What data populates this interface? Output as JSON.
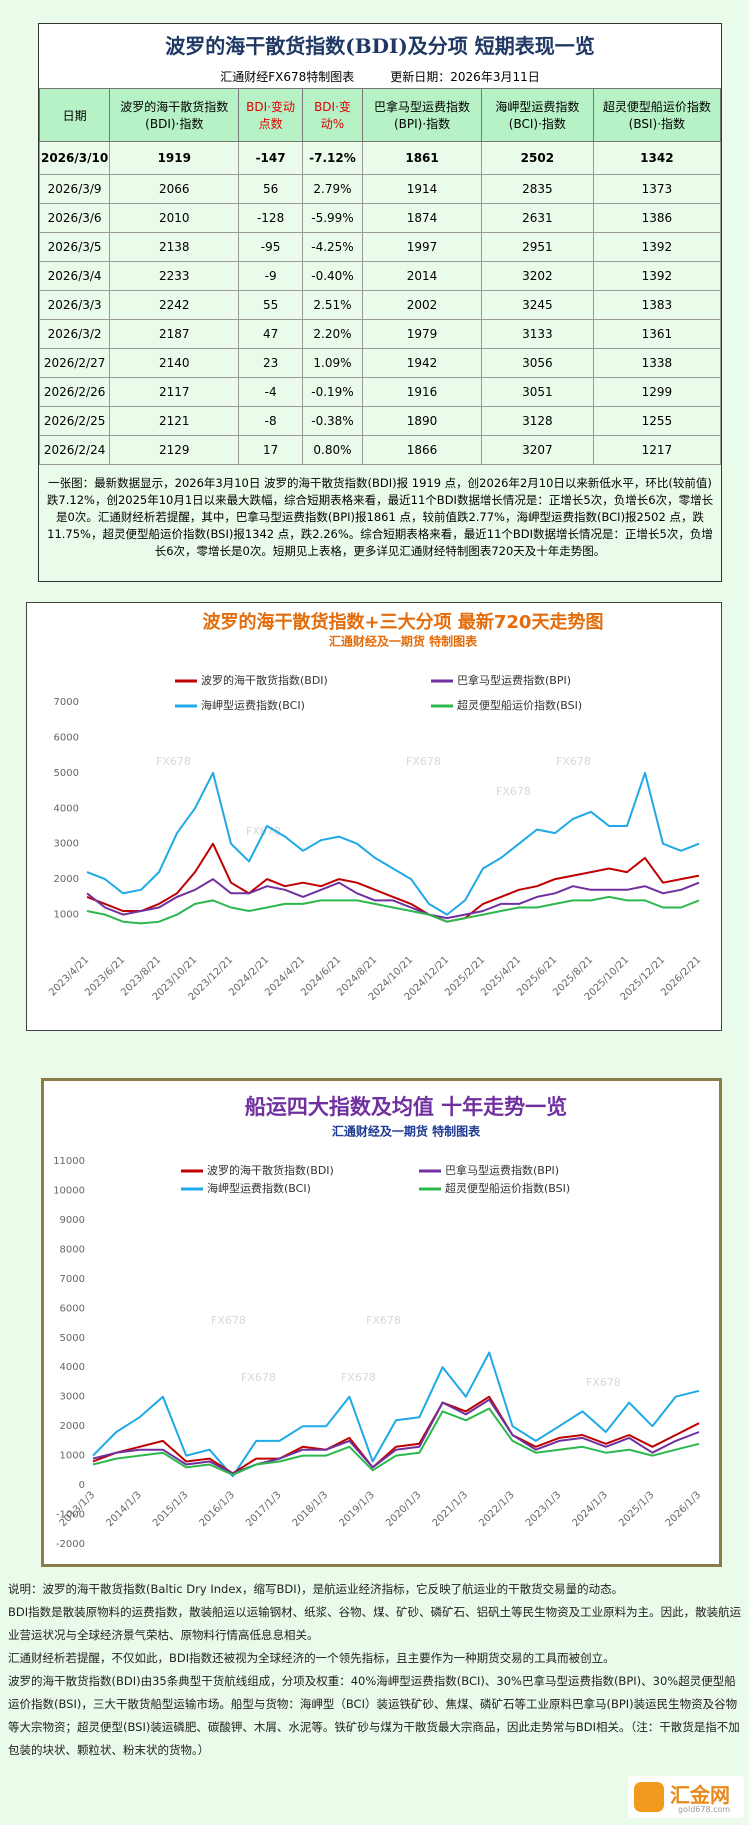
{
  "header": {
    "title": "波罗的海干散货指数(BDI)及分项  短期表现一览",
    "maker": "汇通财经FX678特制图表",
    "updated": "更新日期：2026年3月11日"
  },
  "table": {
    "columns": [
      "日期",
      "波罗的海干散货指数(BDI)·指数",
      "BDI·变动点数",
      "BDI·变动%",
      "巴拿马型运费指数(BPI)·指数",
      "海岬型运费指数(BCI)·指数",
      "超灵便型船运价指数(BSI)·指数"
    ],
    "rows": [
      [
        "2026/3/10",
        "1919",
        "-147",
        "-7.12%",
        "1861",
        "2502",
        "1342"
      ],
      [
        "2026/3/9",
        "2066",
        "56",
        "2.79%",
        "1914",
        "2835",
        "1373"
      ],
      [
        "2026/3/6",
        "2010",
        "-128",
        "-5.99%",
        "1874",
        "2631",
        "1386"
      ],
      [
        "2026/3/5",
        "2138",
        "-95",
        "-4.25%",
        "1997",
        "2951",
        "1392"
      ],
      [
        "2026/3/4",
        "2233",
        "-9",
        "-0.40%",
        "2014",
        "3202",
        "1392"
      ],
      [
        "2026/3/3",
        "2242",
        "55",
        "2.51%",
        "2002",
        "3245",
        "1383"
      ],
      [
        "2026/3/2",
        "2187",
        "47",
        "2.20%",
        "1979",
        "3133",
        "1361"
      ],
      [
        "2026/2/27",
        "2140",
        "23",
        "1.09%",
        "1942",
        "3056",
        "1338"
      ],
      [
        "2026/2/26",
        "2117",
        "-4",
        "-0.19%",
        "1916",
        "3051",
        "1299"
      ],
      [
        "2026/2/25",
        "2121",
        "-8",
        "-0.38%",
        "1890",
        "3128",
        "1255"
      ],
      [
        "2026/2/24",
        "2129",
        "17",
        "0.80%",
        "1866",
        "3207",
        "1217"
      ]
    ]
  },
  "summary": "一张图：最新数据显示，2026年3月10日 波罗的海干散货指数(BDI)报 1919 点，创2026年2月10日以来新低水平，环比(较前值)跌7.12%，创2025年10月1日以来最大跌幅，综合短期表格来看，最近11个BDI数据增长情况是：正增长5次，负增长6次，零增长是0次。汇通财经析若提醒，其中，巴拿马型运费指数(BPI)报1861 点，较前值跌2.77%，海岬型运费指数(BCI)报2502 点，跌11.75%，超灵便型船运价指数(BSI)报1342 点，跌2.26%。综合短期表格来看，最近11个BDI数据增长情况是：正增长5次，负增长6次，零增长是0次。短期见上表格，更多详见汇通财经特制图表720天及十年走势图。",
  "chart_data": [
    {
      "type": "line",
      "title": "波罗的海干散货指数+三大分项  最新720天走势图",
      "subtitle": "汇通财经及一期货 特制图表",
      "watermark": "FX678",
      "categories": [
        "2023/4/21",
        null,
        "2023/6/21",
        null,
        "2023/8/21",
        null,
        "2023/10/21",
        null,
        "2023/12/21",
        null,
        "2024/2/21",
        null,
        "2024/4/21",
        null,
        "2024/6/21",
        null,
        "2024/8/21",
        null,
        "2024/10/21",
        null,
        "2024/12/21",
        null,
        "2025/2/21",
        null,
        "2025/4/21",
        null,
        "2025/6/21",
        null,
        "2025/8/21",
        null,
        "2025/10/21",
        null,
        "2025/12/21",
        null,
        "2026/2/21"
      ],
      "ylim": [
        0,
        7000
      ],
      "yticks": [
        1000,
        2000,
        3000,
        4000,
        5000,
        6000,
        7000
      ],
      "grid": false,
      "series": [
        {
          "name": "波罗的海干散货指数(BDI)",
          "color": "#c00000",
          "values": [
            1500,
            1300,
            1100,
            1100,
            1300,
            1600,
            2200,
            3000,
            1900,
            1600,
            2000,
            1800,
            1900,
            1800,
            2000,
            1900,
            1700,
            1500,
            1300,
            1000,
            800,
            900,
            1300,
            1500,
            1700,
            1800,
            2000,
            2100,
            2200,
            2300,
            2200,
            2600,
            1900,
            2000,
            2100
          ]
        },
        {
          "name": "巴拿马型运费指数(BPI)",
          "color": "#7030a0",
          "values": [
            1600,
            1200,
            1000,
            1100,
            1200,
            1500,
            1700,
            2000,
            1600,
            1600,
            1800,
            1700,
            1500,
            1700,
            1900,
            1600,
            1400,
            1400,
            1200,
            1000,
            900,
            1000,
            1100,
            1300,
            1300,
            1500,
            1600,
            1800,
            1700,
            1700,
            1700,
            1800,
            1600,
            1700,
            1900
          ]
        },
        {
          "name": "海岬型运费指数(BCI)",
          "color": "#1fa9e6",
          "values": [
            2200,
            2000,
            1600,
            1700,
            2200,
            3300,
            4000,
            5000,
            3000,
            2500,
            3500,
            3200,
            2800,
            3100,
            3200,
            3000,
            2600,
            2300,
            2000,
            1300,
            1000,
            1400,
            2300,
            2600,
            3000,
            3400,
            3300,
            3700,
            3900,
            3500,
            3500,
            5000,
            3000,
            2800,
            3000
          ]
        },
        {
          "name": "超灵便型船运价指数(BSI)",
          "color": "#2db84d",
          "values": [
            1100,
            1000,
            800,
            750,
            800,
            1000,
            1300,
            1400,
            1200,
            1100,
            1200,
            1300,
            1300,
            1400,
            1400,
            1400,
            1300,
            1200,
            1100,
            1000,
            800,
            900,
            1000,
            1100,
            1200,
            1200,
            1300,
            1400,
            1400,
            1500,
            1400,
            1400,
            1200,
            1200,
            1400
          ]
        }
      ]
    },
    {
      "type": "line",
      "title": "船运四大指数及均值 十年走势一览",
      "subtitle": "汇通财经及一期货 特制图表",
      "watermark": "FX678",
      "categories": [
        "2013/1/3",
        null,
        "2014/1/3",
        null,
        "2015/1/3",
        null,
        "2016/1/3",
        null,
        "2017/1/3",
        null,
        "2018/1/3",
        null,
        "2019/1/3",
        null,
        "2020/1/3",
        null,
        "2021/1/3",
        null,
        "2022/1/3",
        null,
        "2023/1/3",
        null,
        "2024/1/3",
        null,
        "2025/1/3",
        null,
        "2026/1/3"
      ],
      "ylim": [
        -2000,
        11000
      ],
      "yticks": [
        -2000,
        -1000,
        0,
        1000,
        2000,
        3000,
        4000,
        5000,
        6000,
        7000,
        8000,
        9000,
        10000,
        11000
      ],
      "grid": false,
      "series": [
        {
          "name": "波罗的海干散货指数(BDI)",
          "color": "#c00000",
          "values": [
            800,
            1100,
            1300,
            1500,
            800,
            900,
            400,
            900,
            900,
            1300,
            1200,
            1600,
            600,
            1300,
            1400,
            2800,
            2500,
            3000,
            1700,
            1300,
            1600,
            1700,
            1400,
            1700,
            1300,
            1700,
            2100
          ]
        },
        {
          "name": "巴拿马型运费指数(BPI)",
          "color": "#7030a0",
          "values": [
            900,
            1100,
            1200,
            1200,
            700,
            800,
            400,
            700,
            900,
            1200,
            1200,
            1500,
            600,
            1200,
            1300,
            2800,
            2400,
            2900,
            1700,
            1200,
            1500,
            1600,
            1300,
            1600,
            1100,
            1500,
            1800
          ]
        },
        {
          "name": "海岬型运费指数(BCI)",
          "color": "#1fa9e6",
          "values": [
            1000,
            1800,
            2300,
            3000,
            1000,
            1200,
            300,
            1500,
            1500,
            2000,
            2000,
            3000,
            800,
            2200,
            2300,
            4000,
            3000,
            4500,
            2000,
            1500,
            2000,
            2500,
            1800,
            2800,
            2000,
            3000,
            3200
          ]
        },
        {
          "name": "超灵便型船运价指数(BSI)",
          "color": "#2db84d",
          "values": [
            700,
            900,
            1000,
            1100,
            600,
            700,
            350,
            700,
            800,
            1000,
            1000,
            1300,
            500,
            1000,
            1100,
            2500,
            2200,
            2600,
            1500,
            1100,
            1200,
            1300,
            1100,
            1200,
            1000,
            1200,
            1400
          ]
        }
      ]
    }
  ],
  "notes": [
    "说明：波罗的海干散货指数(Baltic Dry Index，缩写BDI)，是航运业经济指标，它反映了航运业的干散货交易量的动态。",
    "BDI指数是散装原物料的运费指数，散装船运以运输钢材、纸浆、谷物、煤、矿砂、磷矿石、铝矾土等民生物资及工业原料为主。因此，散装航运业营运状况与全球经济景气荣枯、原物料行情高低息息相关。",
    "汇通财经析若提醒，不仅如此，BDI指数还被视为全球经济的一个领先指标，且主要作为一种期货交易的工具而被创立。",
    "波罗的海干散货指数(BDI)由35条典型干货航线组成，分项及权重：40%海岬型运费指数(BCI)、30%巴拿马型运费指数(BPI)、30%超灵便型船运价指数(BSI)，三大干散货船型运输市场。船型与货物：海岬型（BCI）装运铁矿砂、焦煤、磷矿石等工业原料巴拿马(BPI)装运民生物资及谷物等大宗物资；超灵便型(BSI)装运磷肥、碳酸钾、木屑、水泥等。铁矿砂与煤为干散货最大宗商品，因此走势常与BDI相关。（注：干散货是指不加包装的块状、颗粒状、粉末状的货物。）"
  ],
  "logo": {
    "name": "汇金网",
    "site": "gold678.com"
  }
}
